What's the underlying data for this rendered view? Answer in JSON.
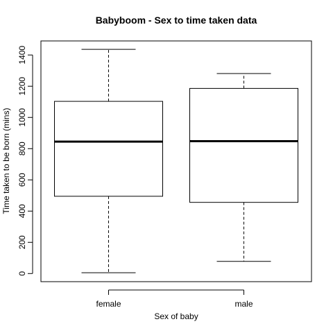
{
  "chart_data": {
    "type": "boxplot",
    "title": "Babyboom - Sex to time taken data",
    "xlabel": "Sex of baby",
    "ylabel": "Time taken to be born (mins)",
    "categories": [
      "female",
      "male"
    ],
    "boxes": [
      {
        "category": "female",
        "min": 5,
        "q1": 495,
        "median": 845,
        "q3": 1103,
        "max": 1436
      },
      {
        "category": "male",
        "min": 78,
        "q1": 456,
        "median": 848,
        "q3": 1186,
        "max": 1281
      }
    ],
    "yticks": [
      0,
      200,
      400,
      600,
      800,
      1000,
      1200,
      1400
    ],
    "ylim": [
      -52,
      1490
    ],
    "grid": false,
    "legend": "none"
  }
}
